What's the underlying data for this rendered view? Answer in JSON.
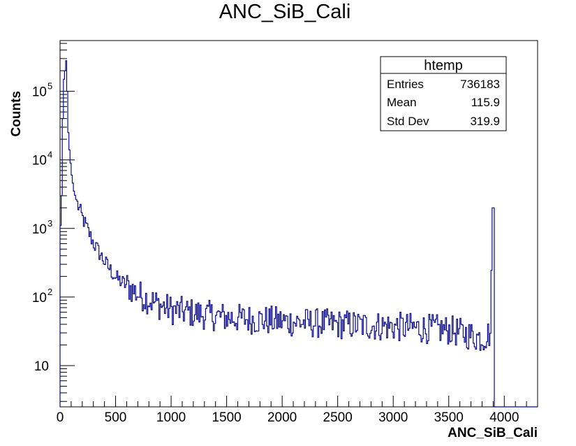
{
  "chart_data": {
    "type": "histogram",
    "title": "ANC_SiB_Cali",
    "xlabel": "ANC_SiB_Cali",
    "ylabel": "Counts",
    "xlim": [
      0,
      4300
    ],
    "ylim": [
      2.5,
      550000
    ],
    "log_y": true,
    "grid": false,
    "x_ticks": [
      0,
      500,
      1000,
      1500,
      2000,
      2500,
      3000,
      3500,
      4000
    ],
    "y_ticks": [
      {
        "value": 10,
        "base": "10",
        "exp": ""
      },
      {
        "value": 100,
        "base": "10",
        "exp": "2"
      },
      {
        "value": 1000,
        "base": "10",
        "exp": "3"
      },
      {
        "value": 10000,
        "base": "10",
        "exp": "4"
      },
      {
        "value": 100000,
        "base": "10",
        "exp": "5"
      }
    ],
    "bin_width": 10,
    "series": [
      {
        "color": "#0b0b8a",
        "keypoints": [
          [
            0,
            1100
          ],
          [
            5,
            2600
          ],
          [
            10,
            3000
          ],
          [
            15,
            9000
          ],
          [
            20,
            40000
          ],
          [
            25,
            130000
          ],
          [
            30,
            150000
          ],
          [
            35,
            120000
          ],
          [
            40,
            200000
          ],
          [
            45,
            250000
          ],
          [
            50,
            280000
          ],
          [
            55,
            260000
          ],
          [
            60,
            100000
          ],
          [
            65,
            50000
          ],
          [
            70,
            25000
          ],
          [
            80,
            14000
          ],
          [
            90,
            9000
          ],
          [
            100,
            6000
          ],
          [
            120,
            3500
          ],
          [
            150,
            2300
          ],
          [
            200,
            1400
          ],
          [
            250,
            900
          ],
          [
            300,
            600
          ],
          [
            400,
            320
          ],
          [
            500,
            190
          ],
          [
            600,
            145
          ],
          [
            700,
            110
          ],
          [
            800,
            90
          ],
          [
            900,
            75
          ],
          [
            1000,
            65
          ],
          [
            1200,
            58
          ],
          [
            1500,
            50
          ],
          [
            2000,
            44
          ],
          [
            2500,
            40
          ],
          [
            3000,
            37
          ],
          [
            3500,
            33
          ],
          [
            3800,
            25
          ],
          [
            3870,
            30
          ],
          [
            3890,
            2000
          ],
          [
            3900,
            2000
          ],
          [
            3910,
            2.5
          ],
          [
            4300,
            2.5
          ]
        ]
      }
    ],
    "stats": {
      "title": "htemp",
      "rows": [
        {
          "label": "Entries",
          "value": "736183"
        },
        {
          "label": "Mean",
          "value": "115.9"
        },
        {
          "label": "Std Dev",
          "value": "319.9"
        }
      ]
    }
  }
}
